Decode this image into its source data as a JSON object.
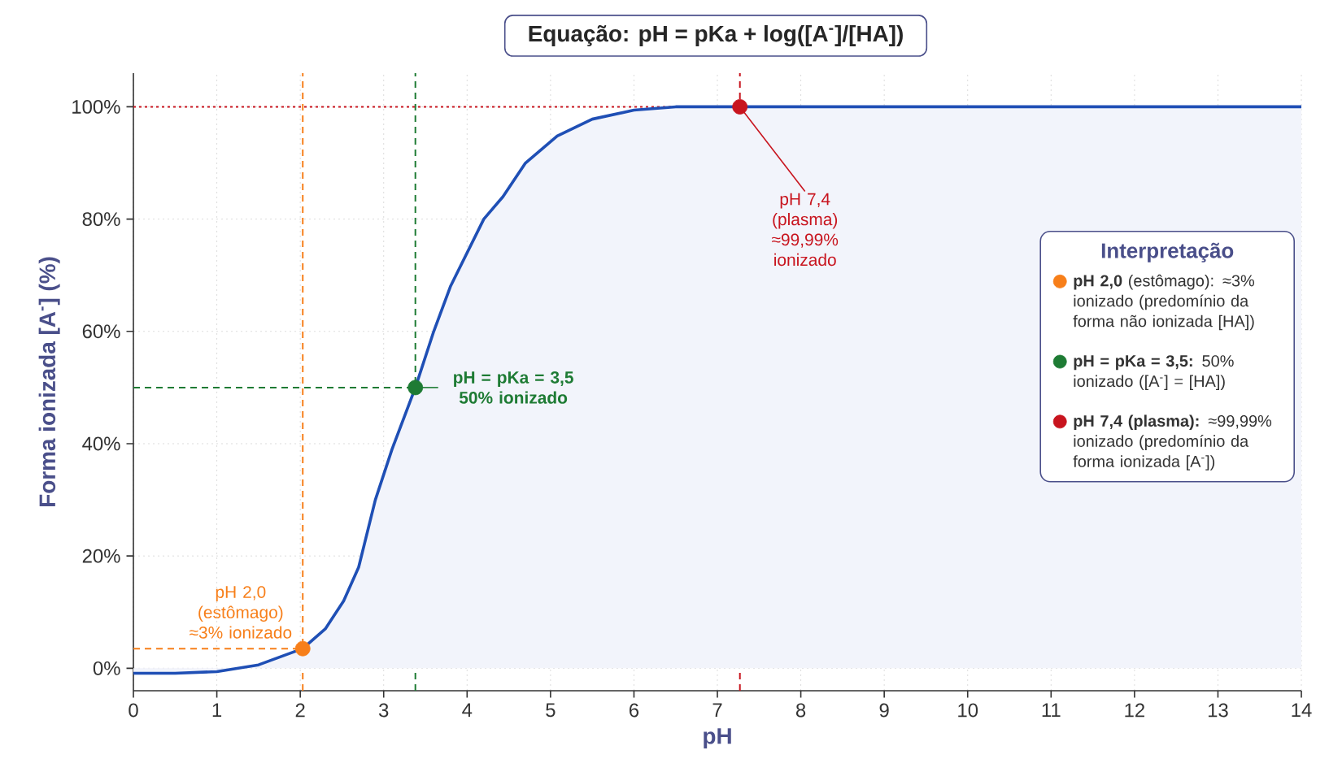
{
  "chart_data": {
    "type": "area",
    "title": "Equação: pH = pKa + log([A$^{-}$]/[HA])",
    "xlabel": "pH",
    "ylabel": "Forma ionizada [A$^{-}$] (%)",
    "legend_title": "Interpretação",
    "legend": "right",
    "xlim": [
      0,
      14
    ],
    "ylim": [
      -4,
      106
    ],
    "xticks": [
      0,
      1,
      2,
      3,
      4,
      5,
      6,
      7,
      8,
      9,
      10,
      11,
      12,
      13,
      14
    ],
    "yticks": [
      {
        "value": 0,
        "label": "0%"
      },
      {
        "value": 20,
        "label": "20%"
      },
      {
        "value": 40,
        "label": "40%"
      },
      {
        "value": 60,
        "label": "60%"
      },
      {
        "value": 80,
        "label": "80%"
      },
      {
        "value": 100,
        "label": "100%"
      }
    ],
    "grid": true,
    "series": [
      {
        "color": "#1f4fb5",
        "x": [
          0,
          0.5,
          1.0,
          1.5,
          2.03,
          2.3,
          2.52,
          2.7,
          2.9,
          3.1,
          3.38,
          3.6,
          3.8,
          4.0,
          4.2,
          4.43,
          4.7,
          5.08,
          5.5,
          6.0,
          6.5,
          7.27,
          10,
          14
        ],
        "values": [
          -0.9,
          -0.9,
          -0.6,
          0.6,
          3.5,
          7,
          12,
          18,
          30,
          39,
          50,
          60,
          68,
          74,
          80,
          84,
          90,
          94.8,
          97.8,
          99.4,
          100,
          100,
          100,
          100
        ]
      },
      {
        "type": "scatter",
        "marker": "circle",
        "color": "#f77f1a",
        "name": "**pH 2,0** (estômago): ≈3% ionizado (predomínio da forma não ionizada [HA])",
        "x": [
          2.03
        ],
        "values": [
          3.5
        ]
      },
      {
        "type": "scatter",
        "marker": "circle",
        "color": "#1e7b34",
        "name": "**pH = pKa = 3,5:** 50% ionizado ([A$^{-}$] = [HA])",
        "x": [
          3.38
        ],
        "values": [
          50
        ]
      },
      {
        "type": "scatter",
        "marker": "circle",
        "color": "#c8141e",
        "name": "**pH 7,4 (plasma):** ≈99,99% ionizado (predomínio da forma ionizada [A$^{-}$])",
        "x": [
          7.27
        ],
        "values": [
          100
        ]
      }
    ],
    "ref_lines": [
      {
        "axis": "x",
        "value": 2.03,
        "color": "#f77f1a",
        "line_style": "dashed"
      },
      {
        "axis": "y",
        "value": 3.5,
        "color": "#f77f1a",
        "line_style": "dashed"
      },
      {
        "axis": "x",
        "value": 3.38,
        "color": "#1e7b34",
        "line_style": "dashed"
      },
      {
        "axis": "y",
        "value": 50,
        "color": "#1e7b34",
        "line_style": "dashed"
      },
      {
        "axis": "x",
        "value": 7.27,
        "color": "#c8141e",
        "line_style": "dashed"
      },
      {
        "axis": "y",
        "value": 100,
        "color": "#c8141e",
        "line_style": "dotted"
      }
    ],
    "annotations": [
      {
        "text": "pH 2,0 (estômago) ≈3% ionizado",
        "x": 2.03,
        "y": 3.5
      },
      {
        "text": "pH = pKa = 3,5 50% ionizado",
        "x": 3.38,
        "y": 50
      },
      {
        "text": "pH 7,4 (plasma) ≈99,99% ionizado",
        "x": 7.27,
        "y": 100
      }
    ]
  }
}
